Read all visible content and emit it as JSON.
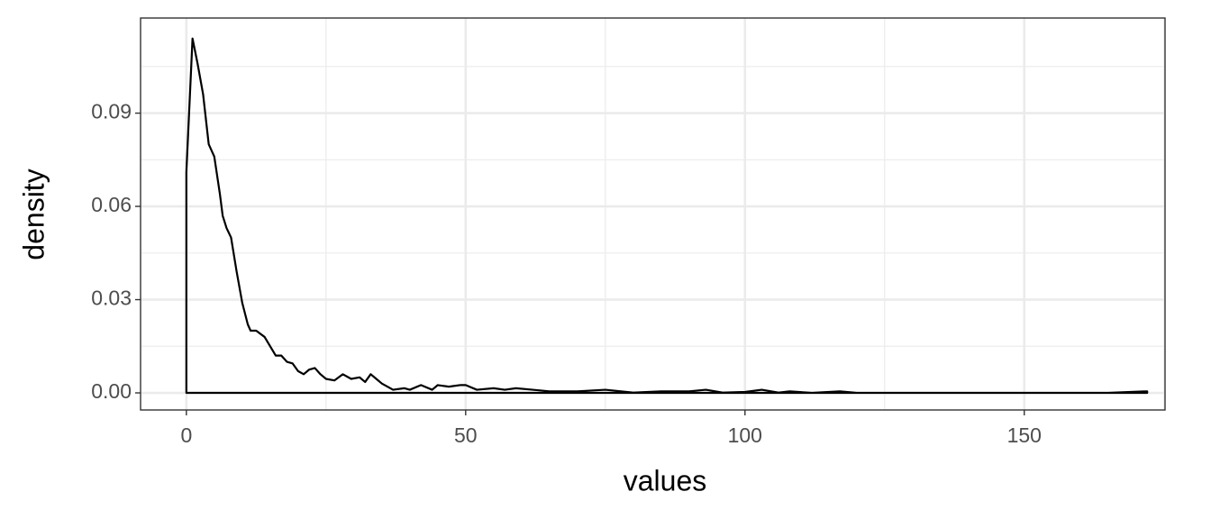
{
  "chart_data": {
    "type": "density",
    "x_label": "values",
    "y_label": "density",
    "x": [
      0,
      0,
      1.1,
      2,
      3,
      4,
      5,
      6,
      6.5,
      7.2,
      8,
      9,
      10,
      11,
      11.5,
      12.5,
      14,
      15,
      16,
      17,
      18,
      19,
      20,
      21,
      22,
      23,
      24,
      25,
      26.5,
      28,
      29.5,
      31,
      32,
      33,
      34,
      35,
      37,
      39,
      40,
      42,
      44,
      45,
      47,
      49,
      50,
      52,
      55,
      57,
      59,
      62,
      65,
      70,
      75,
      80,
      85,
      90,
      93,
      96,
      100,
      103,
      106,
      108,
      112,
      117,
      120,
      150,
      165,
      172,
      172
    ],
    "values": [
      0,
      0.071,
      0.114,
      0.106,
      0.096,
      0.08,
      0.076,
      0.064,
      0.057,
      0.053,
      0.05,
      0.039,
      0.029,
      0.022,
      0.02,
      0.02,
      0.018,
      0.015,
      0.012,
      0.012,
      0.01,
      0.0095,
      0.007,
      0.006,
      0.0075,
      0.008,
      0.006,
      0.0045,
      0.004,
      0.006,
      0.0045,
      0.005,
      0.0035,
      0.006,
      0.0045,
      0.003,
      0.001,
      0.0015,
      0.001,
      0.0025,
      0.001,
      0.0025,
      0.002,
      0.0025,
      0.0025,
      0.001,
      0.0015,
      0.001,
      0.0015,
      0.001,
      0.0005,
      0.0005,
      0.001,
      0.0001,
      0.0005,
      0.0005,
      0.001,
      0.0001,
      0.0003,
      0.001,
      0.0001,
      0.0005,
      0,
      0.0005,
      0,
      0,
      0,
      0.0005,
      0
    ],
    "color": "#000000",
    "xlim": [
      -8.2,
      175.2
    ],
    "ylim": [
      -0.0055,
      0.1206
    ],
    "xticks": [
      0,
      50,
      100,
      150
    ],
    "yticks": [
      {
        "value": 0,
        "label": "0.00"
      },
      {
        "value": 0.03,
        "label": "0.03"
      },
      {
        "value": 0.06,
        "label": "0.06"
      },
      {
        "value": 0.09,
        "label": "0.09"
      }
    ],
    "x_minor_ticks": [
      25,
      75,
      125,
      175
    ],
    "y_minor_ticks": [
      0.015,
      0.045,
      0.075,
      0.105
    ],
    "grid": true
  }
}
